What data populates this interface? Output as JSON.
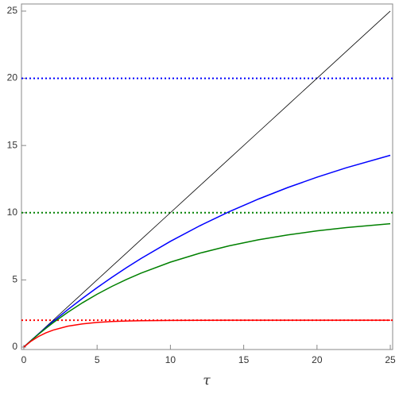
{
  "chart_data": {
    "type": "line",
    "x_label": "τ",
    "x": [
      0,
      0.5,
      1,
      1.5,
      2,
      3,
      4,
      5,
      6,
      7,
      8,
      10,
      12,
      14,
      16,
      18,
      20,
      22,
      25
    ],
    "series": [
      {
        "color": "#000000",
        "width": 0.8,
        "values": [
          0,
          0.5,
          1,
          1.5,
          2,
          3,
          4,
          5,
          6,
          7,
          8,
          10,
          12,
          14,
          16,
          18,
          20,
          22,
          25
        ]
      },
      {
        "color": "#0000ff",
        "width": 1.5,
        "values": [
          0,
          0.494,
          0.975,
          1.445,
          1.903,
          2.786,
          3.625,
          4.424,
          5.184,
          5.906,
          6.594,
          7.869,
          9.024,
          10.068,
          11.013,
          11.869,
          12.642,
          13.343,
          14.27
        ]
      },
      {
        "color": "#008000",
        "width": 1.5,
        "values": [
          0,
          0.488,
          0.952,
          1.393,
          1.813,
          2.592,
          3.297,
          3.935,
          4.512,
          5.034,
          5.507,
          6.321,
          6.988,
          7.534,
          7.981,
          8.347,
          8.647,
          8.892,
          9.179
        ]
      },
      {
        "color": "#ff0000",
        "width": 1.5,
        "values": [
          0,
          0.442,
          0.787,
          1.055,
          1.264,
          1.554,
          1.729,
          1.836,
          1.9,
          1.94,
          1.963,
          1.987,
          1.995,
          1.998,
          1.999,
          2.0,
          2.0,
          2.0,
          2.0
        ]
      }
    ],
    "reference_lines": [
      {
        "value": 20,
        "color": "#0000ff"
      },
      {
        "value": 10,
        "color": "#008000"
      },
      {
        "value": 2,
        "color": "#ff0000"
      }
    ],
    "xlim": [
      -0.16,
      25.16
    ],
    "ylim": [
      -0.18,
      25.53
    ],
    "xticks": [
      0,
      5,
      10,
      15,
      20,
      25
    ],
    "yticks": [
      0,
      5,
      10,
      15,
      20,
      25
    ]
  }
}
